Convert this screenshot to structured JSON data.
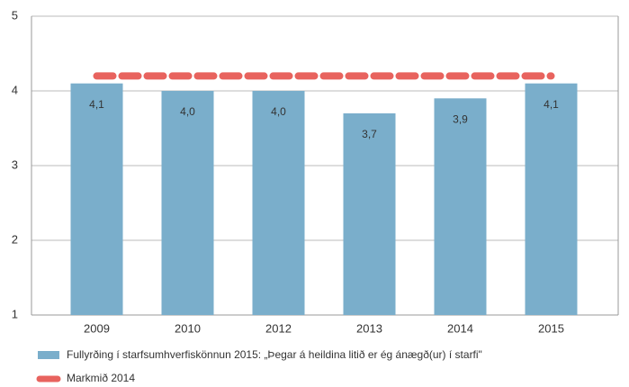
{
  "chart_data": {
    "type": "bar",
    "categories": [
      "2009",
      "2010",
      "2012",
      "2013",
      "2014",
      "2015"
    ],
    "series": [
      {
        "name": "Fullyrðing í starfsumhverfiskönnun 2015: „Þegar á heildina litið er ég ánægð(ur) í starfi\"",
        "color": "#7aaecb",
        "values": [
          4.1,
          4.0,
          4.0,
          3.7,
          3.9,
          4.1
        ],
        "value_labels": [
          "4,1",
          "4,0",
          "4,0",
          "3,7",
          "3,9",
          "4,1"
        ]
      }
    ],
    "target": {
      "name": "Markmið 2014",
      "value": 4.2,
      "color": "#e8635e"
    },
    "ylim": [
      1,
      5
    ],
    "yticks": [
      1,
      2,
      3,
      4,
      5
    ],
    "grid": true
  }
}
